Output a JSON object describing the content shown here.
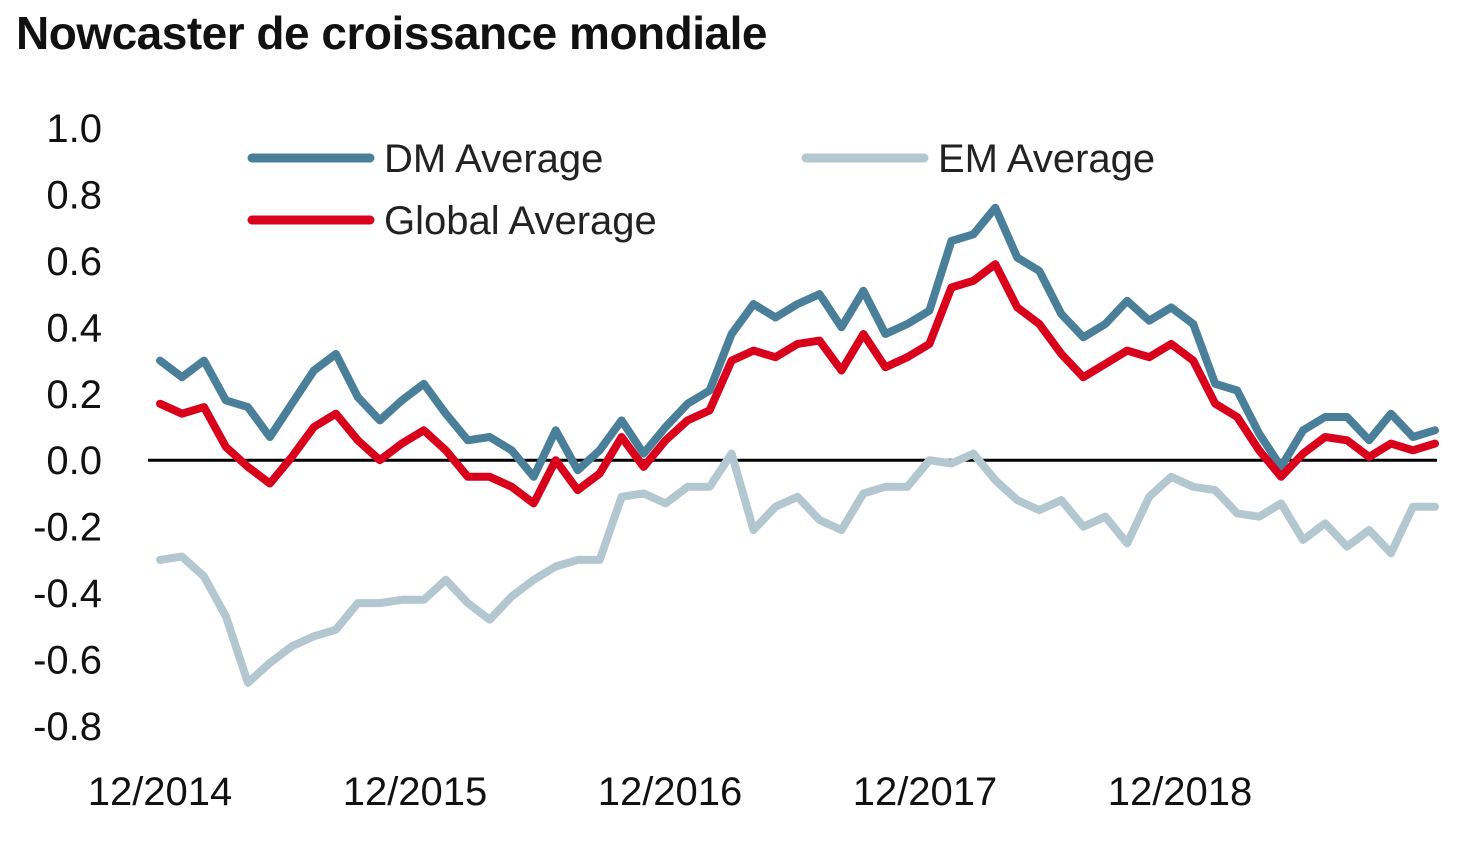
{
  "chart_data": {
    "type": "line",
    "title": "Nowcaster de croissance mondiale",
    "xlabel": "",
    "ylabel": "",
    "x_start": "2014-12",
    "x_end": "2019-12",
    "x_ticks": [
      "12/2014",
      "12/2015",
      "12/2016",
      "12/2017",
      "12/2018"
    ],
    "y_ticks": [
      "1.0",
      "0.8",
      "0.6",
      "0.4",
      "0.2",
      "0.0",
      "-0.2",
      "-0.4",
      "-0.6",
      "-0.8"
    ],
    "ylim": [
      -0.8,
      1.0
    ],
    "zero_line": true,
    "grid": false,
    "legend_position": "top",
    "series": [
      {
        "name": "DM Average",
        "color": "#4a7f99",
        "values": [
          0.3,
          0.25,
          0.3,
          0.18,
          0.16,
          0.07,
          0.17,
          0.27,
          0.32,
          0.19,
          0.12,
          0.18,
          0.23,
          0.14,
          0.06,
          0.07,
          0.03,
          -0.05,
          0.09,
          -0.03,
          0.03,
          0.12,
          0.02,
          0.1,
          0.17,
          0.21,
          0.38,
          0.47,
          0.43,
          0.47,
          0.5,
          0.4,
          0.51,
          0.38,
          0.41,
          0.45,
          0.66,
          0.68,
          0.76,
          0.61,
          0.57,
          0.44,
          0.37,
          0.41,
          0.48,
          0.42,
          0.46,
          0.41,
          0.23,
          0.21,
          0.08,
          -0.02,
          0.09,
          0.13,
          0.13,
          0.06,
          0.14,
          0.07,
          0.09
        ]
      },
      {
        "name": "EM Average",
        "color": "#b3c7d0",
        "values": [
          -0.3,
          -0.29,
          -0.35,
          -0.47,
          -0.67,
          -0.61,
          -0.56,
          -0.53,
          -0.51,
          -0.43,
          -0.43,
          -0.42,
          -0.42,
          -0.36,
          -0.43,
          -0.48,
          -0.41,
          -0.36,
          -0.32,
          -0.3,
          -0.3,
          -0.11,
          -0.1,
          -0.13,
          -0.08,
          -0.08,
          0.02,
          -0.21,
          -0.14,
          -0.11,
          -0.18,
          -0.21,
          -0.1,
          -0.08,
          -0.08,
          0.0,
          -0.01,
          0.02,
          -0.06,
          -0.12,
          -0.15,
          -0.12,
          -0.2,
          -0.17,
          -0.25,
          -0.11,
          -0.05,
          -0.08,
          -0.09,
          -0.16,
          -0.17,
          -0.13,
          -0.24,
          -0.19,
          -0.26,
          -0.21,
          -0.28,
          -0.14,
          -0.14
        ]
      },
      {
        "name": "Global Average",
        "color": "#d9001b",
        "values": [
          0.17,
          0.14,
          0.16,
          0.04,
          -0.02,
          -0.07,
          0.01,
          0.1,
          0.14,
          0.06,
          0.0,
          0.05,
          0.09,
          0.03,
          -0.05,
          -0.05,
          -0.08,
          -0.13,
          0.0,
          -0.09,
          -0.04,
          0.07,
          -0.02,
          0.06,
          0.12,
          0.15,
          0.3,
          0.33,
          0.31,
          0.35,
          0.36,
          0.27,
          0.38,
          0.28,
          0.31,
          0.35,
          0.52,
          0.54,
          0.59,
          0.46,
          0.41,
          0.32,
          0.25,
          0.29,
          0.33,
          0.31,
          0.35,
          0.3,
          0.17,
          0.13,
          0.03,
          -0.05,
          0.02,
          0.07,
          0.06,
          0.01,
          0.05,
          0.03,
          0.05
        ]
      }
    ]
  }
}
